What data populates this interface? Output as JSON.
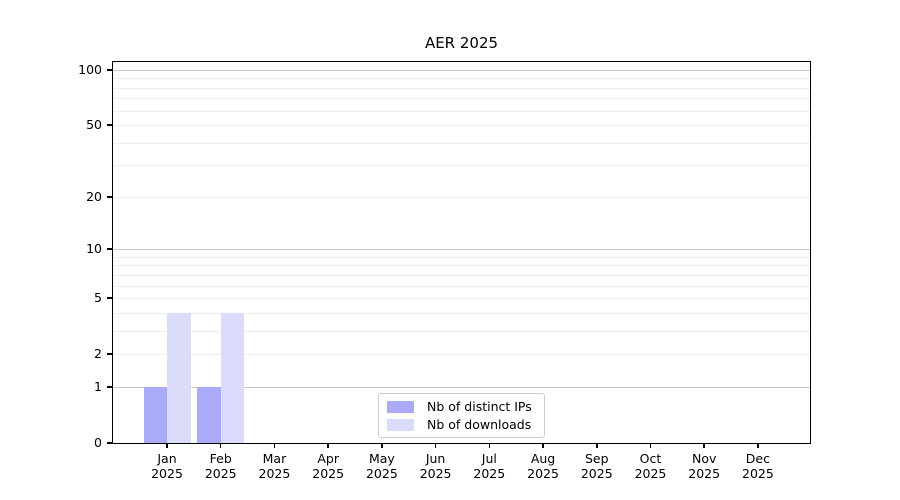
{
  "chart_data": {
    "type": "bar",
    "title": "AER 2025",
    "yscale": "log1p",
    "grid": true,
    "ylim": [
      0,
      110
    ],
    "yticks": [
      100,
      50,
      20,
      10,
      5,
      2,
      1,
      0
    ],
    "gridlines": {
      "major": [
        1,
        10,
        100
      ],
      "minor": [
        2,
        3,
        4,
        5,
        6,
        7,
        8,
        9,
        20,
        30,
        40,
        50,
        60,
        70,
        80,
        90
      ]
    },
    "categories": [
      {
        "month": "Jan",
        "year": "2025"
      },
      {
        "month": "Feb",
        "year": "2025"
      },
      {
        "month": "Mar",
        "year": "2025"
      },
      {
        "month": "Apr",
        "year": "2025"
      },
      {
        "month": "May",
        "year": "2025"
      },
      {
        "month": "Jun",
        "year": "2025"
      },
      {
        "month": "Jul",
        "year": "2025"
      },
      {
        "month": "Aug",
        "year": "2025"
      },
      {
        "month": "Sep",
        "year": "2025"
      },
      {
        "month": "Oct",
        "year": "2025"
      },
      {
        "month": "Nov",
        "year": "2025"
      },
      {
        "month": "Dec",
        "year": "2025"
      }
    ],
    "series": [
      {
        "name": "Nb of distinct IPs",
        "color": "#aaaaf8",
        "values": [
          1,
          1,
          0,
          0,
          0,
          0,
          0,
          0,
          0,
          0,
          0,
          0
        ]
      },
      {
        "name": "Nb of downloads",
        "color": "#dbdbfb",
        "values": [
          4,
          4,
          0,
          0,
          0,
          0,
          0,
          0,
          0,
          0,
          0,
          0
        ]
      }
    ],
    "legend_position": "lower center",
    "colors": {
      "major_grid": "#c6c6c6",
      "minor_grid": "#ededed",
      "spine": "#000000",
      "text": "#000000",
      "legend_border": "#cccccc"
    }
  }
}
